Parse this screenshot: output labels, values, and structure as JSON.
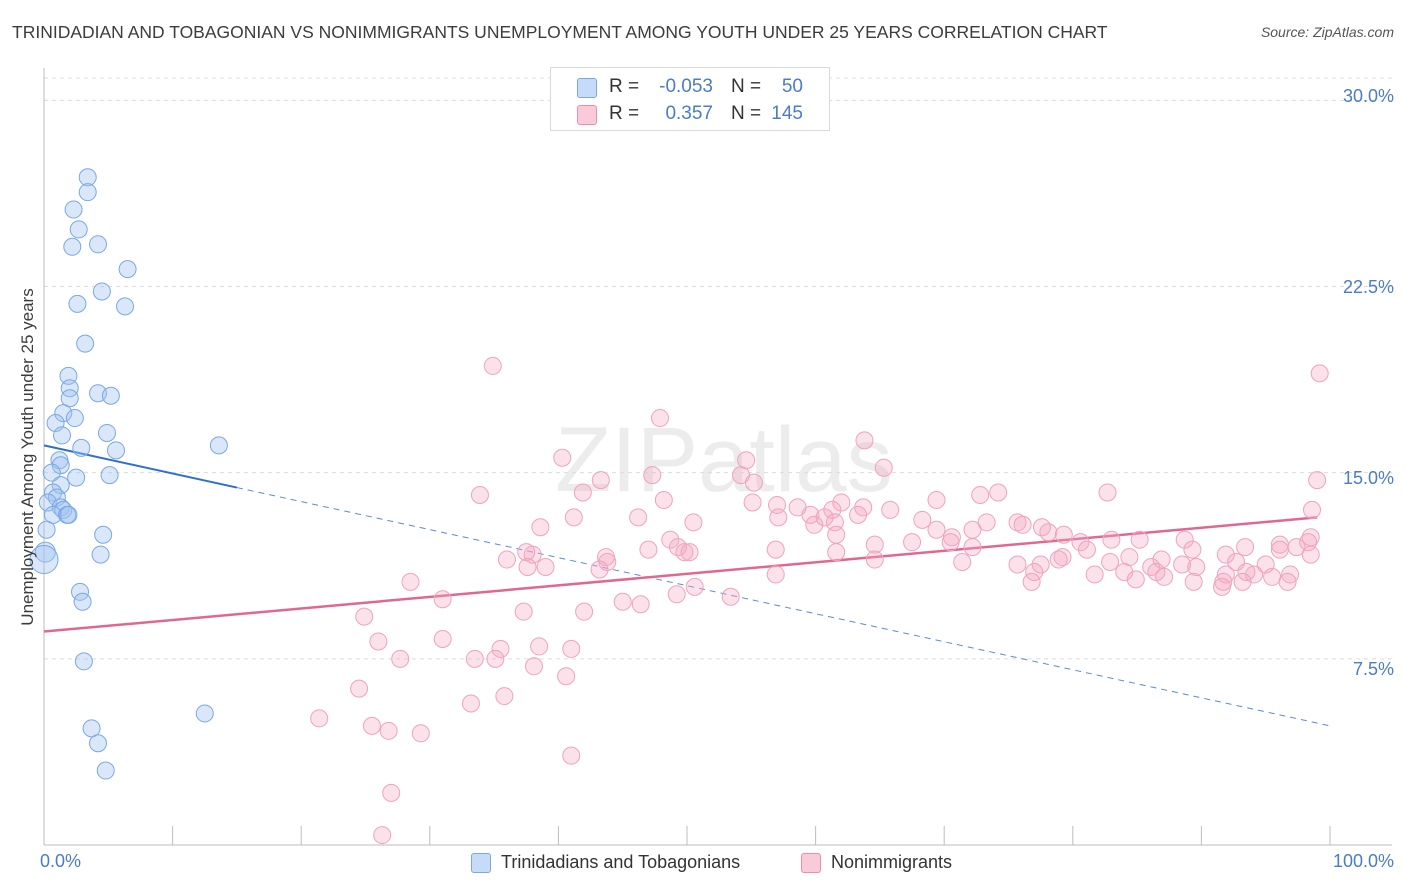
{
  "title": "TRINIDADIAN AND TOBAGONIAN VS NONIMMIGRANTS UNEMPLOYMENT AMONG YOUTH UNDER 25 YEARS CORRELATION CHART",
  "source": "Source: ZipAtlas.com",
  "watermark": "ZIPatlas",
  "legend": {
    "rows": [
      {
        "r_label": "R =",
        "r_value": "-0.053",
        "n_label": "N =",
        "n_value": "50"
      },
      {
        "r_label": "R =",
        "r_value": "0.357",
        "n_label": "N =",
        "n_value": "145"
      }
    ]
  },
  "chart_data": {
    "type": "scatter",
    "title": "TRINIDADIAN AND TOBAGONIAN VS NONIMMIGRANTS UNEMPLOYMENT AMONG YOUTH UNDER 25 YEARS CORRELATION CHART",
    "xlabel": "",
    "ylabel": "Unemployment Among Youth under 25 years",
    "xlim": [
      0,
      100
    ],
    "ylim": [
      0,
      30.9
    ],
    "x_tick_labels": [
      "0.0%",
      "100.0%"
    ],
    "y_ticks": [
      7.5,
      15.0,
      22.5,
      30.0
    ],
    "y_tick_labels": [
      "7.5%",
      "15.0%",
      "22.5%",
      "30.0%"
    ],
    "grid": true,
    "legend_position": "bottom-center",
    "colors": {
      "trinidadian": "#7aa8e6",
      "nonimmigrant": "#f08cab",
      "trinidadian_line": "#2f6fcc",
      "nonimmigrant_line": "#e06890"
    },
    "series": [
      {
        "name": "Trinidadians and Tobagonians",
        "color": "#7aa8e6",
        "trend": {
          "x": [
            0,
            15
          ],
          "y": [
            16.1,
            14.4
          ],
          "dashed_extension_to": [
            100,
            4.8
          ]
        },
        "points": [
          [
            3.4,
            26.9
          ],
          [
            3.4,
            26.3
          ],
          [
            2.3,
            25.6
          ],
          [
            2.7,
            24.8
          ],
          [
            4.2,
            24.2
          ],
          [
            2.2,
            24.1
          ],
          [
            6.5,
            23.2
          ],
          [
            4.5,
            22.3
          ],
          [
            2.6,
            21.8
          ],
          [
            6.3,
            21.7
          ],
          [
            3.2,
            20.2
          ],
          [
            1.9,
            18.9
          ],
          [
            2.0,
            18.4
          ],
          [
            4.2,
            18.2
          ],
          [
            5.2,
            18.1
          ],
          [
            2.0,
            18.0
          ],
          [
            1.5,
            17.4
          ],
          [
            2.4,
            17.2
          ],
          [
            0.9,
            17.0
          ],
          [
            4.9,
            16.6
          ],
          [
            1.4,
            16.5
          ],
          [
            2.9,
            16.0
          ],
          [
            13.6,
            16.1
          ],
          [
            5.6,
            15.9
          ],
          [
            1.2,
            15.5
          ],
          [
            1.3,
            15.3
          ],
          [
            0.6,
            15.0
          ],
          [
            5.1,
            14.9
          ],
          [
            2.5,
            14.8
          ],
          [
            1.3,
            14.5
          ],
          [
            0.7,
            14.2
          ],
          [
            1.0,
            14.0
          ],
          [
            0.3,
            13.8
          ],
          [
            1.3,
            13.6
          ],
          [
            1.5,
            13.5
          ],
          [
            0.7,
            13.3
          ],
          [
            1.8,
            13.3
          ],
          [
            1.9,
            13.3
          ],
          [
            0.2,
            12.7
          ],
          [
            4.6,
            12.5
          ],
          [
            0.1,
            11.8
          ],
          [
            0.0,
            11.5
          ],
          [
            4.4,
            11.7
          ],
          [
            2.8,
            10.2
          ],
          [
            3.0,
            9.8
          ],
          [
            3.1,
            7.4
          ],
          [
            12.5,
            5.3
          ],
          [
            3.7,
            4.7
          ],
          [
            4.2,
            4.1
          ],
          [
            4.8,
            3.0
          ]
        ]
      },
      {
        "name": "Nonimmigrants",
        "color": "#f08cab",
        "trend": {
          "x": [
            0,
            99
          ],
          "y": [
            8.6,
            13.2
          ]
        },
        "points": [
          [
            34.9,
            19.3
          ],
          [
            99.2,
            19.0
          ],
          [
            47.9,
            17.2
          ],
          [
            63.8,
            16.3
          ],
          [
            40.3,
            15.6
          ],
          [
            54.6,
            15.5
          ],
          [
            65.3,
            15.2
          ],
          [
            54.2,
            14.9
          ],
          [
            47.3,
            14.9
          ],
          [
            43.3,
            14.7
          ],
          [
            99.0,
            14.7
          ],
          [
            55.2,
            14.6
          ],
          [
            41.9,
            14.2
          ],
          [
            33.9,
            14.1
          ],
          [
            74.2,
            14.2
          ],
          [
            72.8,
            14.1
          ],
          [
            69.4,
            13.9
          ],
          [
            48.2,
            13.9
          ],
          [
            55.1,
            13.8
          ],
          [
            62.0,
            13.8
          ],
          [
            57.0,
            13.7
          ],
          [
            61.3,
            13.5
          ],
          [
            58.6,
            13.6
          ],
          [
            63.7,
            13.6
          ],
          [
            98.6,
            13.5
          ],
          [
            59.6,
            13.3
          ],
          [
            65.8,
            13.5
          ],
          [
            41.2,
            13.2
          ],
          [
            46.2,
            13.2
          ],
          [
            60.7,
            13.2
          ],
          [
            57.1,
            13.2
          ],
          [
            63.3,
            13.3
          ],
          [
            82.7,
            14.2
          ],
          [
            68.3,
            13.1
          ],
          [
            59.9,
            12.9
          ],
          [
            61.5,
            13.0
          ],
          [
            73.3,
            13.0
          ],
          [
            75.7,
            13.0
          ],
          [
            72.2,
            12.7
          ],
          [
            76.1,
            12.9
          ],
          [
            78.1,
            12.6
          ],
          [
            77.6,
            12.8
          ],
          [
            50.5,
            13.0
          ],
          [
            69.4,
            12.7
          ],
          [
            70.6,
            12.4
          ],
          [
            61.6,
            12.5
          ],
          [
            79.3,
            12.5
          ],
          [
            85.2,
            12.3
          ],
          [
            67.5,
            12.2
          ],
          [
            64.6,
            12.1
          ],
          [
            96.1,
            12.1
          ],
          [
            83.0,
            12.3
          ],
          [
            98.5,
            12.4
          ],
          [
            88.7,
            12.3
          ],
          [
            80.6,
            12.2
          ],
          [
            93.4,
            12.0
          ],
          [
            48.7,
            12.3
          ],
          [
            38.6,
            12.8
          ],
          [
            49.3,
            12.0
          ],
          [
            72.2,
            12.0
          ],
          [
            70.5,
            12.2
          ],
          [
            97.4,
            12.0
          ],
          [
            96.1,
            11.9
          ],
          [
            91.9,
            11.7
          ],
          [
            81.1,
            11.9
          ],
          [
            89.3,
            11.9
          ],
          [
            84.4,
            11.6
          ],
          [
            49.8,
            11.8
          ],
          [
            47.0,
            11.9
          ],
          [
            56.9,
            11.9
          ],
          [
            61.6,
            11.8
          ],
          [
            50.2,
            11.8
          ],
          [
            38.0,
            11.7
          ],
          [
            37.5,
            11.8
          ],
          [
            43.7,
            11.6
          ],
          [
            43.8,
            11.4
          ],
          [
            36.0,
            11.5
          ],
          [
            71.4,
            11.4
          ],
          [
            75.7,
            11.3
          ],
          [
            79.2,
            11.6
          ],
          [
            82.9,
            11.4
          ],
          [
            86.9,
            11.5
          ],
          [
            86.1,
            11.2
          ],
          [
            92.7,
            11.4
          ],
          [
            95.0,
            11.3
          ],
          [
            37.6,
            11.2
          ],
          [
            39.0,
            11.2
          ],
          [
            64.6,
            11.5
          ],
          [
            78.9,
            11.5
          ],
          [
            77.5,
            11.3
          ],
          [
            86.5,
            11.0
          ],
          [
            88.5,
            11.3
          ],
          [
            89.6,
            11.2
          ],
          [
            91.9,
            10.9
          ],
          [
            94.1,
            10.9
          ],
          [
            43.2,
            11.1
          ],
          [
            56.9,
            10.9
          ],
          [
            77.0,
            11.0
          ],
          [
            81.7,
            10.9
          ],
          [
            84.0,
            11.0
          ],
          [
            87.1,
            10.8
          ],
          [
            89.4,
            10.6
          ],
          [
            93.5,
            11.0
          ],
          [
            95.5,
            10.8
          ],
          [
            96.9,
            10.9
          ],
          [
            84.9,
            10.7
          ],
          [
            93.2,
            10.6
          ],
          [
            98.5,
            11.7
          ],
          [
            98.3,
            12.2
          ],
          [
            28.5,
            10.6
          ],
          [
            91.7,
            10.6
          ],
          [
            91.6,
            10.4
          ],
          [
            96.7,
            10.6
          ],
          [
            50.6,
            10.4
          ],
          [
            76.8,
            10.6
          ],
          [
            49.2,
            10.1
          ],
          [
            45.0,
            9.8
          ],
          [
            53.4,
            10.0
          ],
          [
            31.0,
            9.9
          ],
          [
            46.4,
            9.7
          ],
          [
            37.3,
            9.4
          ],
          [
            42.0,
            9.4
          ],
          [
            24.9,
            9.2
          ],
          [
            26.0,
            8.2
          ],
          [
            31.0,
            8.3
          ],
          [
            35.5,
            7.9
          ],
          [
            38.5,
            8.0
          ],
          [
            41.0,
            7.9
          ],
          [
            33.5,
            7.5
          ],
          [
            27.7,
            7.5
          ],
          [
            35.1,
            7.5
          ],
          [
            38.1,
            7.2
          ],
          [
            40.6,
            6.8
          ],
          [
            24.5,
            6.3
          ],
          [
            35.8,
            6.0
          ],
          [
            33.2,
            5.7
          ],
          [
            21.4,
            5.1
          ],
          [
            25.5,
            4.8
          ],
          [
            26.8,
            4.6
          ],
          [
            29.3,
            4.5
          ],
          [
            41.0,
            3.6
          ],
          [
            27.0,
            2.1
          ],
          [
            26.3,
            0.4
          ]
        ]
      }
    ]
  },
  "axis": {
    "ylabel": "Unemployment Among Youth under 25 years",
    "y_ticks": [
      {
        "label": "30.0%"
      },
      {
        "label": "22.5%"
      },
      {
        "label": "15.0%"
      },
      {
        "label": "7.5%"
      }
    ],
    "x_ticks": [
      {
        "label": "0.0%"
      },
      {
        "label": "100.0%"
      }
    ]
  },
  "bottom_legend": [
    {
      "label": "Trinidadians and Tobagonians",
      "color": "#7aa8e6"
    },
    {
      "label": "Nonimmigrants",
      "color": "#f08cab"
    }
  ]
}
